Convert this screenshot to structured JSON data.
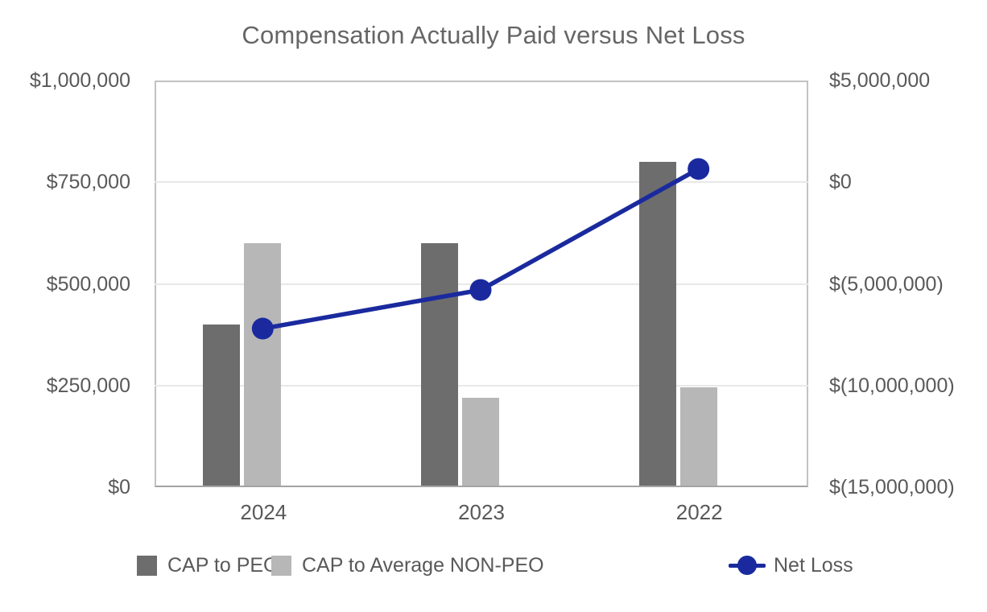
{
  "chart_data": {
    "type": "combo-bar-line",
    "title": "Compensation Actually Paid versus Net Loss",
    "categories": [
      "2024",
      "2023",
      "2022"
    ],
    "series": [
      {
        "name": "CAP to PEO",
        "type": "bar",
        "axis": "left",
        "color": "#6d6d6d",
        "values": [
          400000,
          600000,
          800000
        ]
      },
      {
        "name": "CAP to Average NON-PEO",
        "type": "bar",
        "axis": "left",
        "color": "#b7b7b7",
        "values": [
          600000,
          220000,
          245000
        ]
      },
      {
        "name": "Net Loss",
        "type": "line",
        "axis": "right",
        "color": "#1a2a9e",
        "values": [
          -7200000,
          -5300000,
          650000
        ]
      }
    ],
    "axes": {
      "left": {
        "min": 0,
        "max": 1000000,
        "ticks": [
          {
            "value": 0,
            "label": "$0"
          },
          {
            "value": 250000,
            "label": "$250,000"
          },
          {
            "value": 500000,
            "label": "$500,000"
          },
          {
            "value": 750000,
            "label": "$750,000"
          },
          {
            "value": 1000000,
            "label": "$1,000,000"
          }
        ]
      },
      "right": {
        "min": -15000000,
        "max": 5000000,
        "ticks": [
          {
            "value": -15000000,
            "label": "$(15,000,000)"
          },
          {
            "value": -10000000,
            "label": "$(10,000,000)"
          },
          {
            "value": -5000000,
            "label": "$(5,000,000)"
          },
          {
            "value": 0,
            "label": "$0"
          },
          {
            "value": 5000000,
            "label": "$5,000,000"
          }
        ]
      }
    },
    "grid": true,
    "legend_position": "bottom"
  },
  "colors": {
    "title_text": "#666666",
    "axis_text": "#595959",
    "gridline": "#e8e8e8",
    "plot_border": "#c2c2c2",
    "axis_line": "#a3a3a3",
    "bar_dark": "#6d6d6d",
    "bar_light": "#b7b7b7",
    "line_navy": "#1a2a9e",
    "background": "#ffffff"
  }
}
